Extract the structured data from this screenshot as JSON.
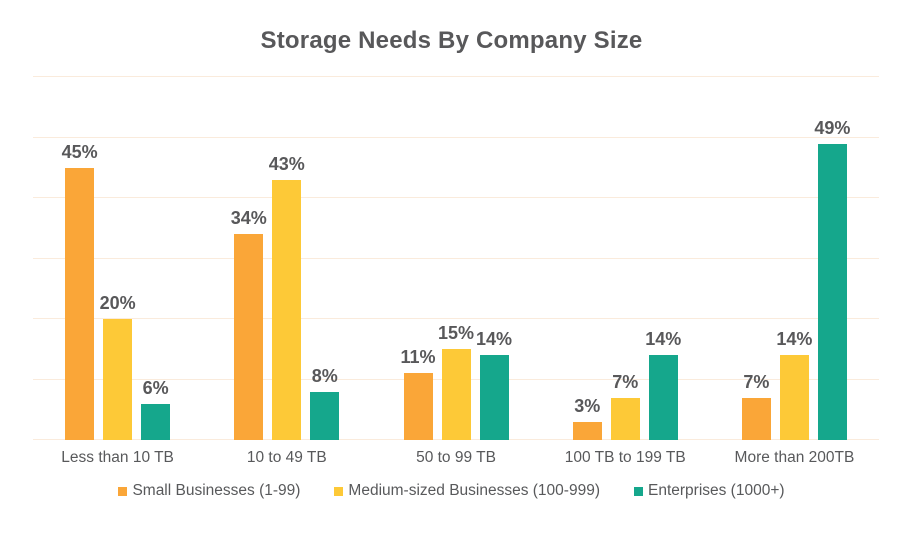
{
  "chart_data": {
    "type": "bar",
    "title": "Storage Needs By Company Size",
    "categories": [
      "Less than 10 TB",
      "10 to 49 TB",
      "50 to 99 TB",
      "100 TB to 199 TB",
      "More than 200TB"
    ],
    "series": [
      {
        "name": "Small Businesses (1-99)",
        "color": "#FAA638",
        "values": [
          45,
          34,
          11,
          3,
          7
        ]
      },
      {
        "name": "Medium-sized Businesses (100-999)",
        "color": "#FDC937",
        "values": [
          20,
          43,
          15,
          7,
          14
        ]
      },
      {
        "name": "Enterprises (1000+)",
        "color": "#15A78C",
        "values": [
          6,
          8,
          14,
          14,
          49
        ]
      }
    ],
    "xlabel": "",
    "ylabel": "",
    "ylim": [
      0,
      60
    ],
    "grid": {
      "show": true,
      "interval": 10,
      "color": "#FAEBDC"
    },
    "value_suffix": "%",
    "data_labels": true,
    "legend_position": "bottom",
    "text_colors": {
      "title": "#58585A",
      "data_label": "#58585A",
      "axis_label": "#58595B",
      "legend": "#58595B"
    },
    "background": "#FFFFFF"
  }
}
